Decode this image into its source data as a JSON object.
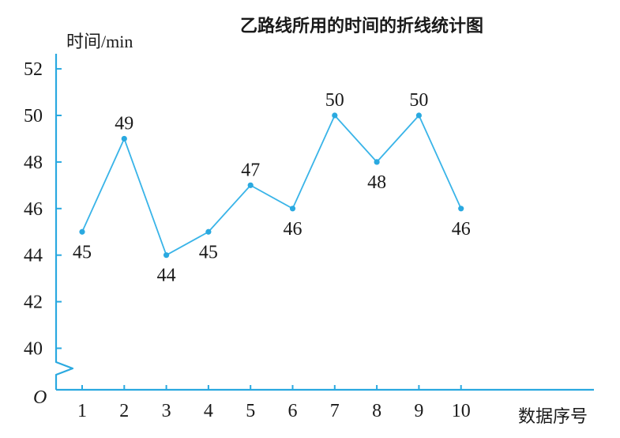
{
  "chart_data": {
    "type": "line",
    "title": "乙路线所用的时间的折线统计图",
    "ylabel": "时间/min",
    "xlabel": "数据序号",
    "origin_label": "O",
    "categories": [
      1,
      2,
      3,
      4,
      5,
      6,
      7,
      8,
      9,
      10
    ],
    "values": [
      45,
      49,
      44,
      45,
      47,
      46,
      50,
      48,
      50,
      46
    ],
    "data_labels": [
      "45",
      "49",
      "44",
      "45",
      "47",
      "46",
      "50",
      "48",
      "50",
      "46"
    ],
    "y_ticks": [
      40,
      42,
      44,
      46,
      48,
      50,
      52
    ],
    "ylim": [
      40,
      52
    ],
    "axis_break": true,
    "grid": false,
    "legend": "none",
    "colors": {
      "axis": "#2aa9e0",
      "line": "#39b4e8",
      "marker": "#2aa9e0",
      "text": "#1a1a1a"
    }
  }
}
